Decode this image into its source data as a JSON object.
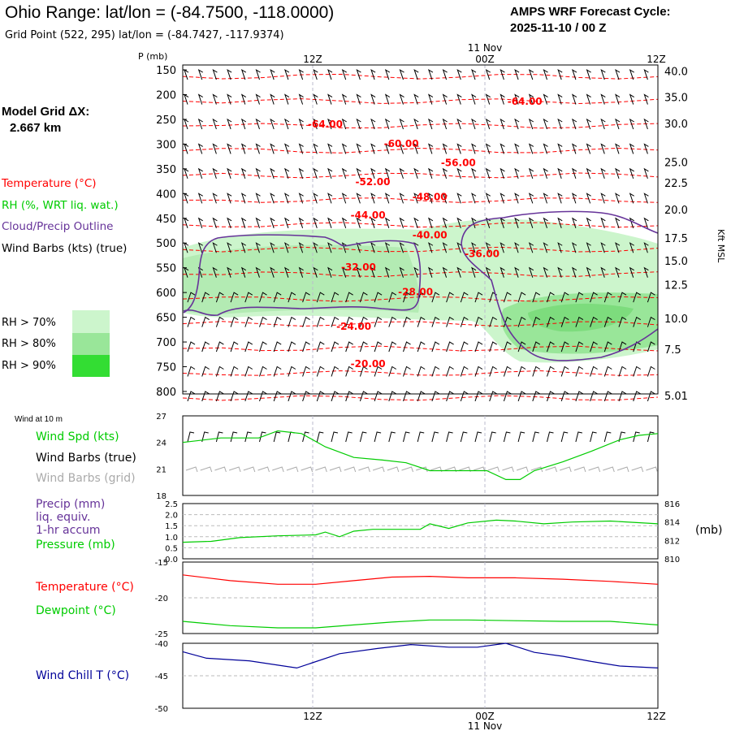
{
  "header": {
    "title": "Ohio Range:  lat/lon = (-84.7500, -118.0000)",
    "subtitle": "Grid Point (522, 295) lat/lon = (-84.7427, -117.9374)",
    "cycle_line1": "AMPS WRF Forecast Cycle:",
    "cycle_line2": "2025-11-10 / 00  Z"
  },
  "model_grid": {
    "line1": "Model Grid ΔX:",
    "line2": "2.667 km"
  },
  "legend": {
    "temperature": "Temperature (°C)",
    "rh": "RH (%, WRT liq. wat.)",
    "cloud": "Cloud/Precip Outline",
    "wind": "Wind Barbs (kts) (true)",
    "rh70": "RH > 70%",
    "rh80": "RH > 80%",
    "rh90": "RH > 90%"
  },
  "colors": {
    "temperature": "#ff0000",
    "rh_text": "#00cc00",
    "cloud": "#663399",
    "rh70": "#ccf5cc",
    "rh80": "#99e699",
    "rh90": "#33dd33",
    "wind_chill": "#000099",
    "grid_barbs": "#aaaaaa"
  },
  "time_axis": {
    "top_labels": [
      "12Z",
      "00Z",
      "12Z"
    ],
    "day_label": "11 Nov",
    "bottom_labels": [
      "12Z",
      "00Z",
      "12Z"
    ]
  },
  "chart_data": [
    {
      "type": "contour",
      "name": "cross-section",
      "ylabel": "P (mb)",
      "yticks": [
        150,
        200,
        250,
        300,
        350,
        400,
        450,
        500,
        550,
        600,
        650,
        700,
        750,
        800
      ],
      "ylim": [
        140,
        805
      ],
      "height_label": "Kft MSL",
      "height_ticks": [
        {
          "label": "40.0",
          "p": 152
        },
        {
          "label": "35.0",
          "p": 205
        },
        {
          "label": "30.0",
          "p": 258
        },
        {
          "label": "25.0",
          "p": 336
        },
        {
          "label": "22.5",
          "p": 378
        },
        {
          "label": "20.0",
          "p": 432
        },
        {
          "label": "17.5",
          "p": 490
        },
        {
          "label": "15.0",
          "p": 536
        },
        {
          "label": "12.5",
          "p": 584
        },
        {
          "label": "10.0",
          "p": 652
        },
        {
          "label": "7.5",
          "p": 715
        },
        {
          "label": "5.01",
          "p": 808
        }
      ],
      "temperature_labels": [
        {
          "label": "-64.00",
          "t": 0.72,
          "p": 212
        },
        {
          "label": "-64.00",
          "t": 0.3,
          "p": 258
        },
        {
          "label": "-60.00",
          "t": 0.46,
          "p": 298
        },
        {
          "label": "-56.00",
          "t": 0.58,
          "p": 336
        },
        {
          "label": "-52.00",
          "t": 0.4,
          "p": 375
        },
        {
          "label": "-48.00",
          "t": 0.52,
          "p": 405
        },
        {
          "label": "-44.00",
          "t": 0.39,
          "p": 442
        },
        {
          "label": "-40.00",
          "t": 0.52,
          "p": 482
        },
        {
          "label": "-36.00",
          "t": 0.63,
          "p": 520
        },
        {
          "label": "-32.00",
          "t": 0.37,
          "p": 547
        },
        {
          "label": "-28.00",
          "t": 0.49,
          "p": 597
        },
        {
          "label": "-24.00",
          "t": 0.36,
          "p": 667
        },
        {
          "label": "-20.00",
          "t": 0.39,
          "p": 743
        }
      ]
    },
    {
      "type": "line",
      "name": "wind-10m",
      "panel_title": "Wind at 10 m",
      "labels": [
        "Wind Spd (kts)",
        "Wind Barbs (true)",
        "Wind Barbs (grid)"
      ],
      "yticks": [
        18,
        21,
        24,
        27
      ],
      "ylim": [
        18,
        27
      ],
      "x": [
        0,
        0.08,
        0.16,
        0.2,
        0.25,
        0.3,
        0.36,
        0.42,
        0.47,
        0.52,
        0.58,
        0.64,
        0.68,
        0.71,
        0.74,
        0.8,
        0.86,
        0.92,
        0.96,
        1.0
      ],
      "values": [
        24.0,
        24.5,
        24.5,
        25.3,
        25.0,
        23.5,
        22.3,
        22.0,
        21.7,
        20.8,
        20.8,
        20.8,
        19.8,
        19.8,
        20.8,
        21.8,
        23.0,
        24.3,
        24.8,
        25.0
      ]
    },
    {
      "type": "line",
      "name": "precip-pressure",
      "labels": [
        "Precip (mm)",
        "liq. equiv.",
        "1-hr accum",
        "Pressure (mb)"
      ],
      "left_ticks": [
        "0.0",
        "0.5",
        "1.0",
        "1.5",
        "2.0",
        "2.5"
      ],
      "left_lim": [
        0,
        2.5
      ],
      "right_ticks": [
        "810",
        "812",
        "814",
        "816"
      ],
      "right_lim": [
        810,
        816
      ],
      "right_unit": "(mb)",
      "precip_values": [],
      "x": [
        0,
        0.06,
        0.12,
        0.2,
        0.28,
        0.3,
        0.33,
        0.36,
        0.4,
        0.45,
        0.5,
        0.52,
        0.56,
        0.6,
        0.66,
        0.7,
        0.76,
        0.82,
        0.9,
        1.0
      ],
      "pressure": [
        811.8,
        811.9,
        812.3,
        812.5,
        812.6,
        812.9,
        812.4,
        813.0,
        813.2,
        813.2,
        813.2,
        813.8,
        813.3,
        813.9,
        814.2,
        814.1,
        813.8,
        814.0,
        814.1,
        813.8
      ]
    },
    {
      "type": "line",
      "name": "temperature-dewpoint",
      "labels": [
        "Temperature (°C)",
        "Dewpoint (°C)"
      ],
      "yticks": [
        -25,
        -20,
        -15
      ],
      "ylim": [
        -25,
        -15
      ],
      "x": [
        0,
        0.1,
        0.2,
        0.28,
        0.36,
        0.44,
        0.52,
        0.6,
        0.7,
        0.8,
        0.9,
        1.0
      ],
      "temperature": [
        -16.8,
        -17.6,
        -18.1,
        -18.1,
        -17.6,
        -17.1,
        -17.0,
        -17.2,
        -17.2,
        -17.4,
        -17.7,
        -18.1
      ],
      "dewpoint": [
        -23.3,
        -23.9,
        -24.2,
        -24.2,
        -23.8,
        -23.4,
        -23.1,
        -23.1,
        -23.2,
        -23.3,
        -23.3,
        -23.8
      ]
    },
    {
      "type": "line",
      "name": "wind-chill",
      "labels": [
        "Wind Chill T (°C)"
      ],
      "yticks": [
        -50,
        -45,
        -40
      ],
      "ylim": [
        -50,
        -40
      ],
      "x": [
        0,
        0.05,
        0.14,
        0.24,
        0.33,
        0.41,
        0.48,
        0.56,
        0.62,
        0.68,
        0.74,
        0.8,
        0.86,
        0.92,
        1.0
      ],
      "values": [
        -41.3,
        -42.3,
        -42.7,
        -43.8,
        -41.6,
        -40.8,
        -40.2,
        -40.6,
        -40.6,
        -40.0,
        -41.4,
        -42.0,
        -42.8,
        -43.5,
        -43.8
      ]
    }
  ]
}
